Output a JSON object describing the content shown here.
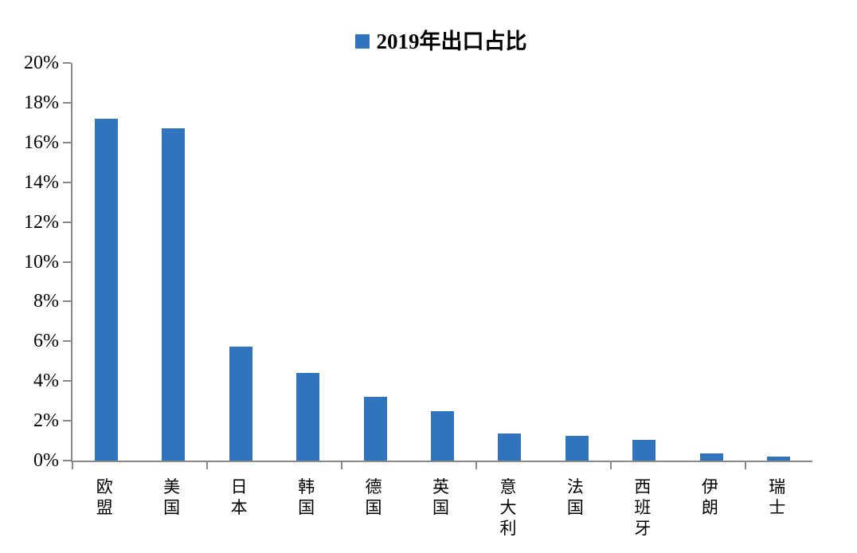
{
  "chart_data": {
    "type": "bar",
    "title": "2019年出口占比",
    "legend": {
      "label": "2019年出口占比",
      "marker_color": "#2F74BD",
      "position": "top-center"
    },
    "categories": [
      "欧盟",
      "美国",
      "日本",
      "韩国",
      "德国",
      "英国",
      "意大利",
      "法国",
      "西班牙",
      "伊朗",
      "瑞士"
    ],
    "values": [
      17.2,
      16.7,
      5.75,
      4.4,
      3.2,
      2.5,
      1.35,
      1.25,
      1.05,
      0.35,
      0.2
    ],
    "unit": "%",
    "ylim": [
      0,
      20
    ],
    "yticks": [
      0,
      2,
      4,
      6,
      8,
      10,
      12,
      14,
      16,
      18,
      20
    ],
    "ytick_labels": [
      "0%",
      "2%",
      "4%",
      "6%",
      "8%",
      "10%",
      "12%",
      "14%",
      "16%",
      "18%",
      "20%"
    ],
    "xtick_interval": 2,
    "grid": false,
    "xlabel": "",
    "ylabel": "",
    "bar_color": "#2F74BD",
    "axis_color": "#898989",
    "text_color": "#000000",
    "background_color": "#FFFFFF"
  }
}
